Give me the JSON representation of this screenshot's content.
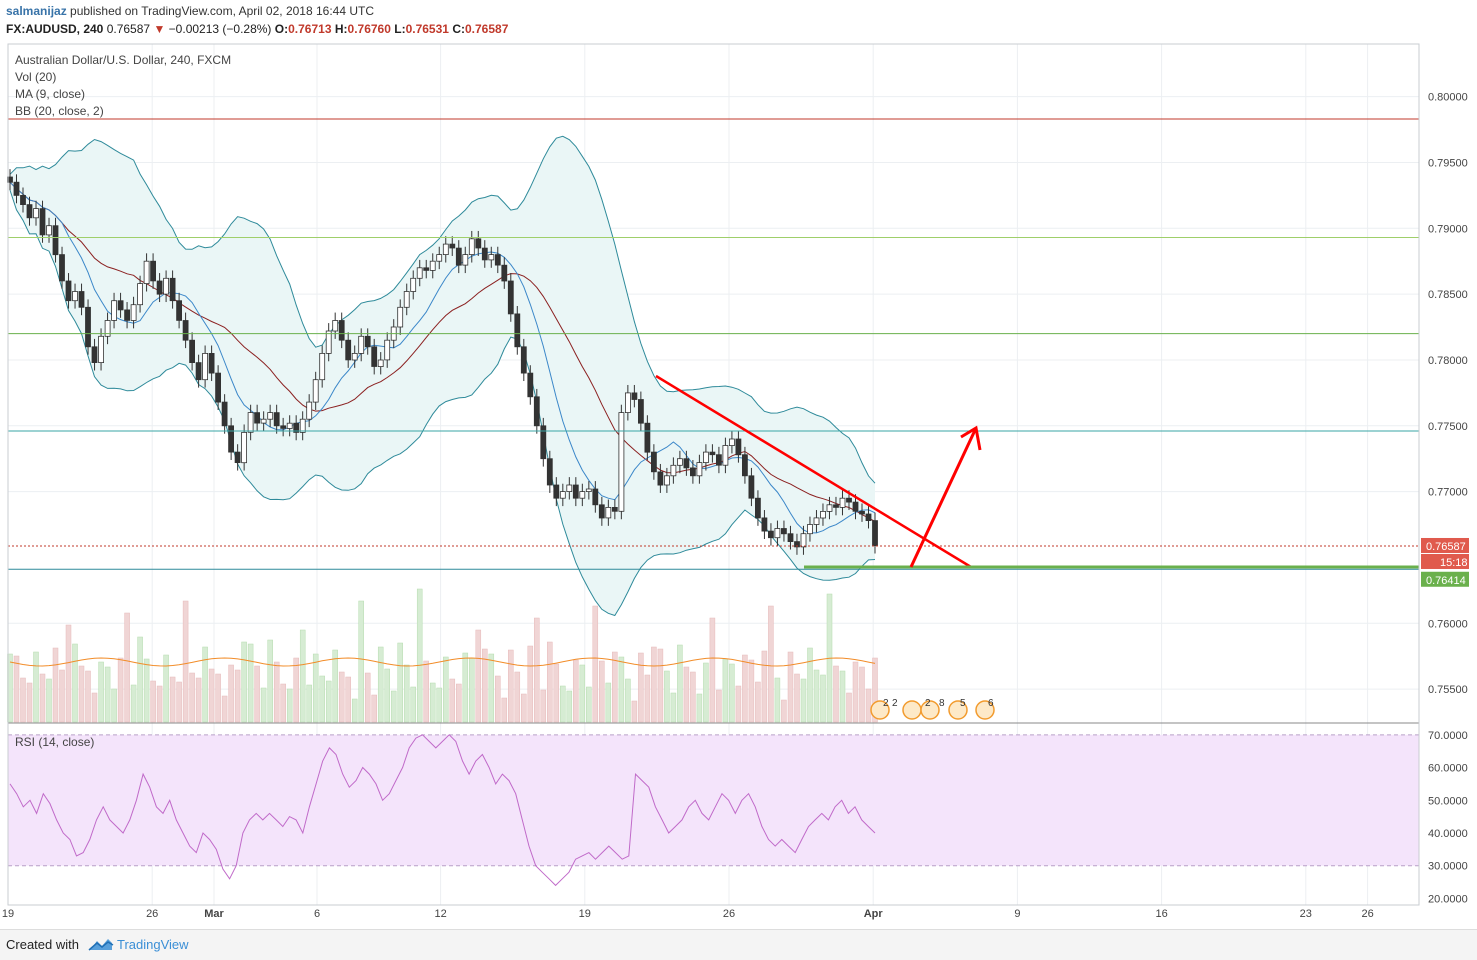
{
  "header": {
    "author": "salmanijaz",
    "published_text": " published on TradingView.com, April 02, 2018 16:44 UTC",
    "symbol": "FX:AUDUSD, 240",
    "last": "0.76587",
    "change": "−0.00213 (−0.28%)",
    "o_label": "O:",
    "o_value": "0.76713",
    "h_label": "H:",
    "h_value": "0.76760",
    "l_label": "L:",
    "l_value": "0.76531",
    "c_label": "C:",
    "c_value": "0.76587"
  },
  "legend": {
    "title": "Australian Dollar/U.S. Dollar, 240, FXCM",
    "vol": "Vol (20)",
    "ma": "MA (9, close)",
    "bb": "BB (20, close, 2)",
    "rsi": "RSI (14, close)"
  },
  "price_labels": {
    "last": "0.76587",
    "countdown": "15:18",
    "support": "0.76414"
  },
  "event_badges": [
    "2",
    "2",
    "2",
    "8",
    "5",
    "6"
  ],
  "footer": {
    "created": "Created with",
    "brand": "TradingView"
  },
  "colors": {
    "up": "#4a9a4a",
    "down": "#c04141",
    "bb_band": "#2e8a9a",
    "bb_fill": "#eaf6f6",
    "ma": "#3b87c9",
    "mid": "#8b2020",
    "rsi": "#c06ac9",
    "rsi_fill": "#f4e4fb",
    "trend": "#ff0000",
    "support": "#6ab04c"
  },
  "chart_data": [
    {
      "type": "candlestick",
      "title": "Australian Dollar/U.S. Dollar, 240, FXCM",
      "y_ticks": [
        "0.80000",
        "0.79500",
        "0.79000",
        "0.78500",
        "0.78000",
        "0.77500",
        "0.77000",
        "0.76000",
        "0.75500"
      ],
      "ylim": [
        0.7525,
        0.804
      ],
      "x_ticks": [
        "19",
        "26",
        "Mar",
        "6",
        "12",
        "19",
        "26",
        "Apr",
        "9",
        "16",
        "23",
        "26"
      ],
      "x_tick_days": [
        0,
        7,
        10,
        15,
        21,
        28,
        35,
        42,
        49,
        56,
        63,
        66
      ],
      "closes": [
        0.7935,
        0.7925,
        0.7918,
        0.7908,
        0.7915,
        0.7895,
        0.7902,
        0.788,
        0.786,
        0.7845,
        0.7852,
        0.784,
        0.781,
        0.7798,
        0.7818,
        0.783,
        0.7845,
        0.7838,
        0.783,
        0.7842,
        0.7858,
        0.7875,
        0.786,
        0.785,
        0.7862,
        0.7845,
        0.783,
        0.7815,
        0.7798,
        0.7785,
        0.7805,
        0.779,
        0.7768,
        0.775,
        0.773,
        0.7722,
        0.7745,
        0.776,
        0.7752,
        0.7755,
        0.776,
        0.775,
        0.7748,
        0.7752,
        0.7745,
        0.7755,
        0.7768,
        0.7785,
        0.7805,
        0.7822,
        0.783,
        0.7815,
        0.78,
        0.7805,
        0.7818,
        0.781,
        0.7795,
        0.78,
        0.7815,
        0.7825,
        0.784,
        0.7852,
        0.7862,
        0.787,
        0.7868,
        0.7875,
        0.788,
        0.7888,
        0.7885,
        0.7872,
        0.788,
        0.7892,
        0.7885,
        0.7876,
        0.788,
        0.7872,
        0.786,
        0.7835,
        0.781,
        0.779,
        0.7772,
        0.775,
        0.7725,
        0.7705,
        0.7695,
        0.77,
        0.7705,
        0.7695,
        0.77,
        0.7702,
        0.769,
        0.768,
        0.7688,
        0.7685,
        0.776,
        0.7775,
        0.777,
        0.7752,
        0.773,
        0.7715,
        0.7705,
        0.7712,
        0.772,
        0.7725,
        0.7718,
        0.7712,
        0.7722,
        0.773,
        0.7728,
        0.772,
        0.7735,
        0.774,
        0.7728,
        0.7712,
        0.7695,
        0.768,
        0.767,
        0.7665,
        0.7672,
        0.7668,
        0.7662,
        0.7658,
        0.7668,
        0.7675,
        0.768,
        0.7685,
        0.769,
        0.7688,
        0.7695,
        0.7692,
        0.7685,
        0.7683,
        0.7678,
        0.7659
      ],
      "last_price": 0.76587,
      "support_level": 0.76414,
      "horizontal_lines": [
        0.7983,
        0.7893,
        0.782,
        0.7746,
        0.7641
      ]
    },
    {
      "type": "line",
      "title": "RSI (14, close)",
      "y_ticks": [
        "70.0000",
        "60.0000",
        "50.0000",
        "40.0000",
        "30.0000",
        "20.0000"
      ],
      "ylim": [
        18,
        73
      ],
      "bands": [
        30,
        70
      ],
      "values": [
        55,
        52,
        48,
        50,
        46,
        52,
        49,
        44,
        40,
        38,
        33,
        34,
        38,
        44,
        48,
        44,
        42,
        40,
        44,
        50,
        58,
        54,
        48,
        46,
        50,
        44,
        40,
        36,
        34,
        40,
        38,
        35,
        29,
        26,
        30,
        40,
        44,
        46,
        44,
        46,
        44,
        42,
        45,
        44,
        40,
        48,
        55,
        62,
        66,
        64,
        58,
        54,
        56,
        60,
        58,
        55,
        50,
        52,
        56,
        60,
        66,
        69,
        70,
        68,
        66,
        68,
        70,
        68,
        62,
        58,
        62,
        64,
        60,
        55,
        58,
        56,
        52,
        44,
        36,
        30,
        28,
        26,
        24,
        26,
        28,
        32,
        33,
        34,
        32,
        34,
        36,
        34,
        32,
        33,
        58,
        56,
        54,
        48,
        44,
        40,
        42,
        44,
        48,
        50,
        46,
        44,
        48,
        52,
        50,
        46,
        50,
        52,
        48,
        42,
        38,
        36,
        38,
        36,
        34,
        38,
        42,
        44,
        46,
        44,
        48,
        50,
        46,
        48,
        44,
        42,
        40
      ]
    }
  ]
}
